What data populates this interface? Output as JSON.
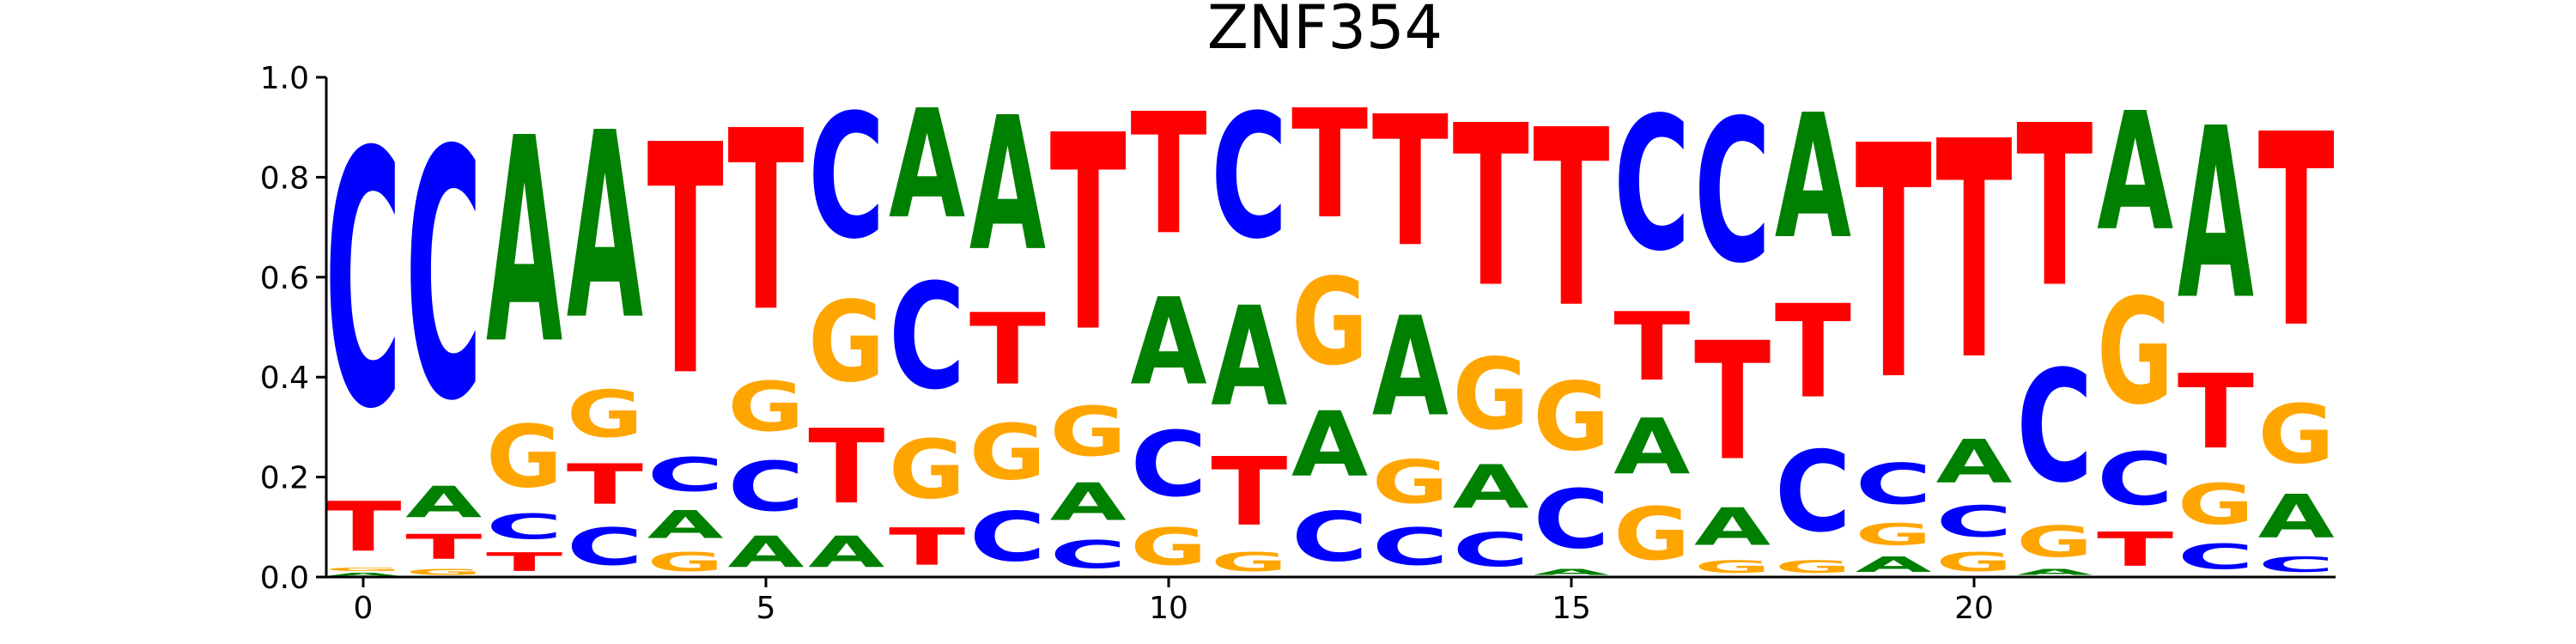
{
  "chart_data": {
    "type": "sequence-logo",
    "title": "ZNF354",
    "ylim": [
      0,
      1
    ],
    "yticks": [
      "0.0",
      "0.2",
      "0.4",
      "0.6",
      "0.8",
      "1.0"
    ],
    "xticks": [
      "0",
      "5",
      "10",
      "15",
      "20"
    ],
    "colors": {
      "A": "#008000",
      "C": "#0000ff",
      "G": "#ffa500",
      "T": "#ff0000"
    },
    "positions": [
      {
        "pos": 0,
        "A": 0.01,
        "C": 0.82,
        "G": 0.01,
        "T": 0.16
      },
      {
        "pos": 1,
        "A": 0.1,
        "C": 0.8,
        "G": 0.02,
        "T": 0.08
      },
      {
        "pos": 2,
        "A": 0.66,
        "C": 0.08,
        "G": 0.2,
        "T": 0.06
      },
      {
        "pos": 3,
        "A": 0.6,
        "C": 0.12,
        "G": 0.15,
        "T": 0.13
      },
      {
        "pos": 4,
        "A": 0.09,
        "C": 0.11,
        "G": 0.06,
        "T": 0.74
      },
      {
        "pos": 5,
        "A": 0.1,
        "C": 0.16,
        "G": 0.16,
        "T": 0.58
      },
      {
        "pos": 6,
        "A": 0.1,
        "C": 0.4,
        "G": 0.26,
        "T": 0.24
      },
      {
        "pos": 7,
        "A": 0.35,
        "C": 0.34,
        "G": 0.19,
        "T": 0.12
      },
      {
        "pos": 8,
        "A": 0.43,
        "C": 0.16,
        "G": 0.18,
        "T": 0.23
      },
      {
        "pos": 9,
        "A": 0.12,
        "C": 0.09,
        "G": 0.16,
        "T": 0.63
      },
      {
        "pos": 10,
        "A": 0.28,
        "C": 0.21,
        "G": 0.12,
        "T": 0.39
      },
      {
        "pos": 11,
        "A": 0.32,
        "C": 0.4,
        "G": 0.06,
        "T": 0.22
      },
      {
        "pos": 12,
        "A": 0.21,
        "C": 0.16,
        "G": 0.28,
        "T": 0.35
      },
      {
        "pos": 13,
        "A": 0.32,
        "C": 0.12,
        "G": 0.14,
        "T": 0.42
      },
      {
        "pos": 14,
        "A": 0.14,
        "C": 0.11,
        "G": 0.23,
        "T": 0.52
      },
      {
        "pos": 15,
        "A": 0.02,
        "C": 0.19,
        "G": 0.22,
        "T": 0.57
      },
      {
        "pos": 16,
        "A": 0.18,
        "C": 0.43,
        "G": 0.17,
        "T": 0.22
      },
      {
        "pos": 17,
        "A": 0.12,
        "C": 0.46,
        "G": 0.04,
        "T": 0.38
      },
      {
        "pos": 18,
        "A": 0.4,
        "C": 0.26,
        "G": 0.04,
        "T": 0.3
      },
      {
        "pos": 19,
        "A": 0.05,
        "C": 0.13,
        "G": 0.07,
        "T": 0.75
      },
      {
        "pos": 20,
        "A": 0.14,
        "C": 0.1,
        "G": 0.06,
        "T": 0.7
      },
      {
        "pos": 21,
        "A": 0.02,
        "C": 0.36,
        "G": 0.1,
        "T": 0.52
      },
      {
        "pos": 22,
        "A": 0.38,
        "C": 0.17,
        "G": 0.34,
        "T": 0.11
      },
      {
        "pos": 23,
        "A": 0.55,
        "C": 0.08,
        "G": 0.13,
        "T": 0.24
      },
      {
        "pos": 24,
        "A": 0.14,
        "C": 0.05,
        "G": 0.19,
        "T": 0.62
      }
    ]
  }
}
